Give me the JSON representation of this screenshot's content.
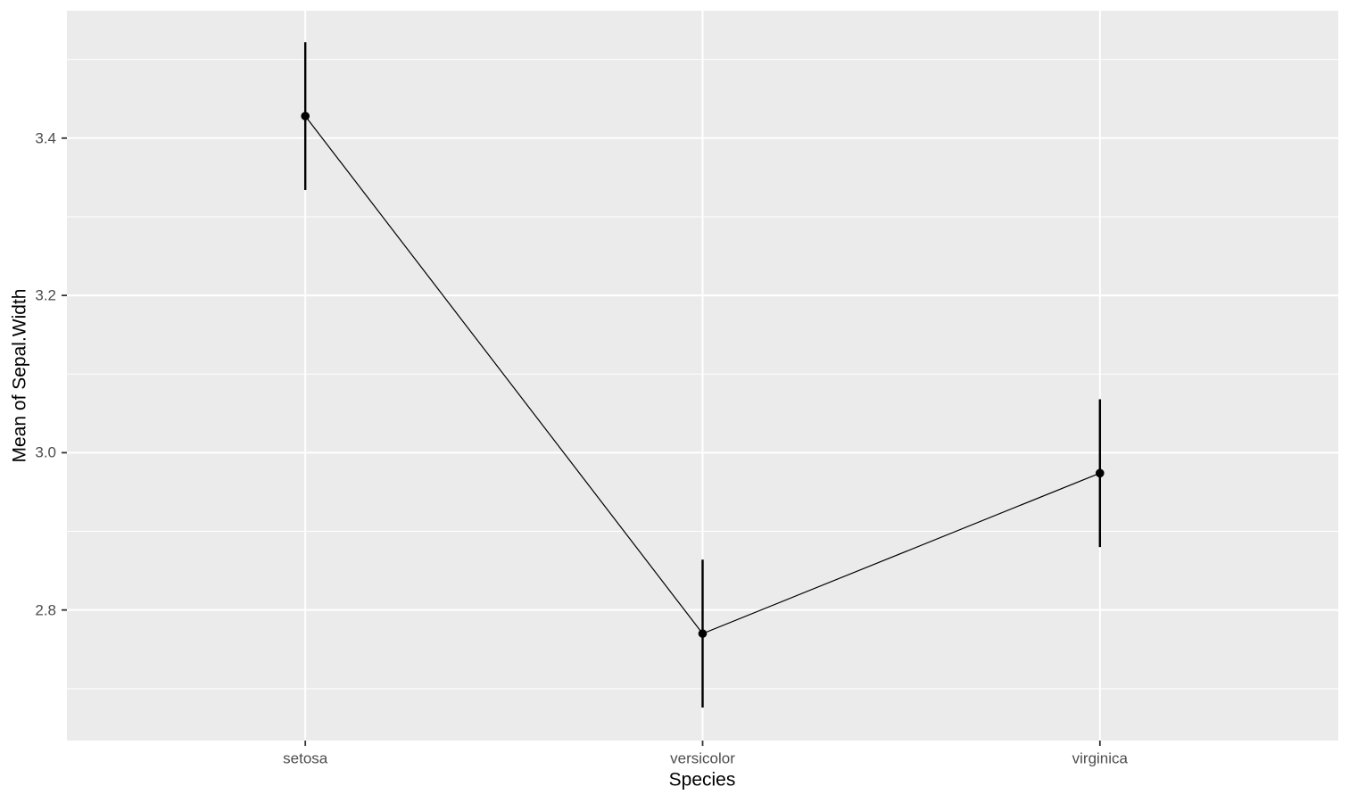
{
  "chart_data": {
    "type": "line",
    "subtype": "means-plot-with-error-bars",
    "title": "",
    "xlabel": "Species",
    "ylabel": "Mean of Sepal.Width",
    "categories": [
      "setosa",
      "versicolor",
      "virginica"
    ],
    "series": [
      {
        "name": "Mean of Sepal.Width",
        "values": [
          3.428,
          2.77,
          2.974
        ],
        "ci_lower": [
          3.334,
          2.676,
          2.88
        ],
        "ci_upper": [
          3.522,
          2.864,
          3.068
        ]
      }
    ],
    "ylim": [
      2.634,
      3.562
    ],
    "yticks": [
      {
        "label": "3.4",
        "value": 3.4
      },
      {
        "label": "3.2",
        "value": 3.2
      },
      {
        "label": "3.0",
        "value": 3.0
      },
      {
        "label": "2.8",
        "value": 2.8
      }
    ],
    "yticks_minor": [
      2.7,
      2.9,
      3.1,
      3.3,
      3.5
    ],
    "grid": {
      "major": true,
      "minor": true,
      "vertical_at_categories": true
    },
    "legend": false,
    "marker": "filled-circle-with-vertical-error-bar",
    "theme": {
      "outer_bg": "#FFFFFF",
      "panel_bg": "#EBEBEB",
      "grid_color": "#FFFFFF",
      "data_color": "#000000",
      "tick_label_color": "#4D4D4D",
      "axis_title_color": "#000000",
      "tick_mark_color": "#333333"
    }
  }
}
